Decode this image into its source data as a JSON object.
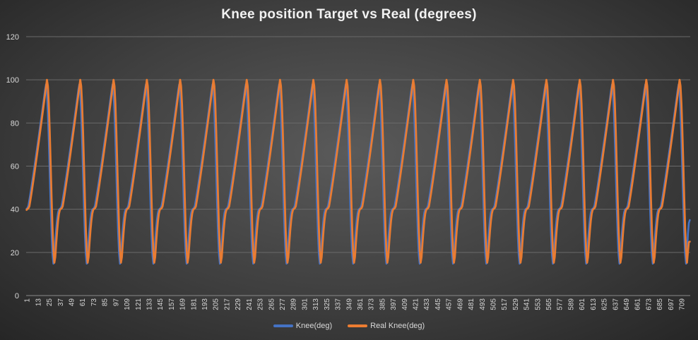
{
  "chart_data": {
    "type": "line",
    "title": "Knee position Target vs Real (degrees)",
    "xlabel": "",
    "ylabel": "",
    "ylim": [
      0,
      120
    ],
    "yticks": [
      0,
      20,
      40,
      60,
      80,
      100,
      120
    ],
    "x_tick_labels": [
      "1",
      "13",
      "25",
      "37",
      "49",
      "61",
      "73",
      "85",
      "97",
      "109",
      "121",
      "133",
      "145",
      "157",
      "169",
      "181",
      "193",
      "205",
      "217",
      "229",
      "241",
      "253",
      "265",
      "277",
      "289",
      "301",
      "313",
      "325",
      "337",
      "349",
      "361",
      "373",
      "385",
      "397",
      "409",
      "421",
      "433",
      "445",
      "457",
      "469",
      "481",
      "493",
      "505",
      "517",
      "529",
      "541",
      "553",
      "565",
      "577",
      "589",
      "601",
      "613",
      "625",
      "637",
      "649",
      "661",
      "673",
      "685",
      "697",
      "709"
    ],
    "x_count": 718,
    "grid": "horizontal",
    "legend_position": "bottom",
    "cycle": {
      "period_samples": 36,
      "cycles_shown": 20,
      "first_peak_sample": 23,
      "min_deg": 14.5,
      "max_deg": 100,
      "knee_plateau_deg": 40,
      "start_value_deg": 33,
      "end_knee_deg": 35,
      "end_real_deg": 25
    },
    "series": [
      {
        "name": "Knee(deg)",
        "color": "#4472C4",
        "sample_offset": -1.2,
        "peak_deg": 98
      },
      {
        "name": "Real Knee(deg)",
        "color": "#ED7D31",
        "sample_offset": 0,
        "peak_deg": 100
      }
    ]
  }
}
